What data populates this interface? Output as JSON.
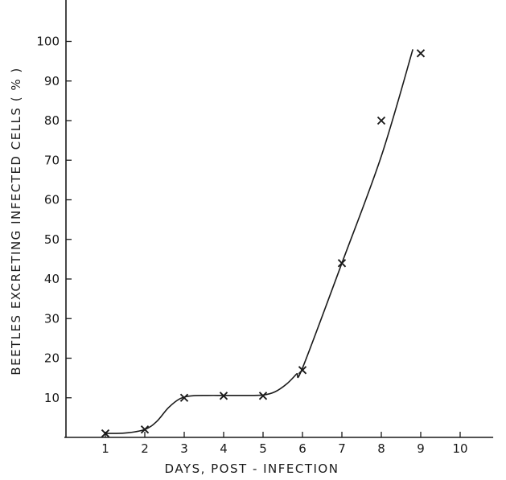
{
  "chart_data": {
    "type": "line",
    "title": "",
    "xlabel": "DAYS,  POST - INFECTION",
    "ylabel": "BEETLES  EXCRETING  INFECTED  CELLS  ( % )",
    "xlim": [
      0,
      10.9
    ],
    "ylim": [
      0,
      110
    ],
    "x_ticks": [
      1,
      2,
      3,
      4,
      5,
      6,
      7,
      8,
      9,
      10
    ],
    "y_ticks": [
      10,
      20,
      30,
      40,
      50,
      60,
      70,
      80,
      90,
      100
    ],
    "grid": false,
    "legend": "none",
    "series": [
      {
        "marker": "x",
        "x": [
          1,
          2,
          3,
          4,
          5,
          6,
          7,
          8,
          9
        ],
        "y": [
          1,
          2,
          10,
          10.5,
          10.5,
          17,
          44,
          80,
          97
        ]
      }
    ],
    "fitted_curve": {
      "x": [
        1,
        1.5,
        2,
        2.3,
        2.6,
        2.9,
        3.2,
        3.6,
        4,
        4.5,
        5,
        5.3,
        5.6,
        5.85,
        6,
        7,
        8,
        8.8
      ],
      "y": [
        1,
        1.1,
        2,
        4,
        7.5,
        9.8,
        10.5,
        10.6,
        10.6,
        10.6,
        10.7,
        11.5,
        13.5,
        16,
        17.5,
        44,
        71,
        98
      ]
    },
    "colors": {
      "ink": "#1a1a1a",
      "background": "#ffffff"
    }
  }
}
